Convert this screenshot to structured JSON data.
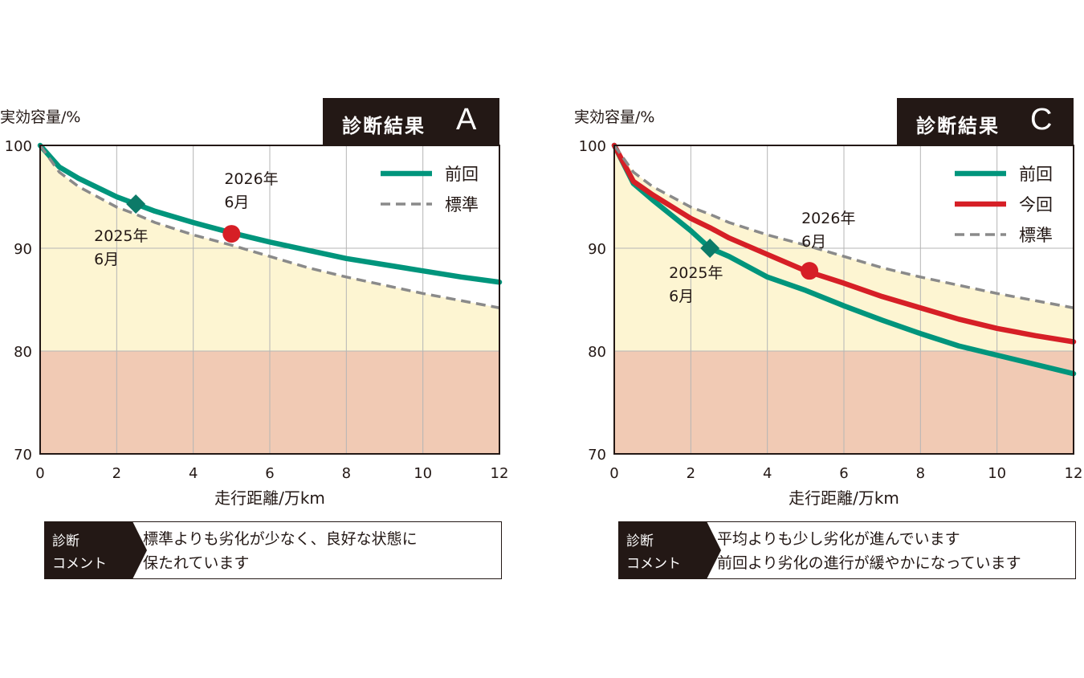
{
  "chart_data": [
    {
      "type": "line",
      "grade_label": "診断結果",
      "grade": "A",
      "ylabel": "実効容量/%",
      "xlabel": "走行距離/万km",
      "xlim": [
        0,
        12
      ],
      "ylim": [
        70,
        100
      ],
      "xticks": [
        "0",
        "2",
        "4",
        "6",
        "8",
        "10",
        "12"
      ],
      "yticks": [
        "70",
        "80",
        "90",
        "100"
      ],
      "grid": true,
      "legend_position": "top-right",
      "zones": [
        {
          "range": [
            80,
            100
          ],
          "color": "#fdf5d2"
        },
        {
          "range": [
            70,
            80
          ],
          "color": "#f1cab4"
        }
      ],
      "series": [
        {
          "name": "前回",
          "color": "#00957c",
          "style": "solid",
          "x": [
            0,
            0.5,
            1,
            2,
            2.5,
            3,
            4,
            5,
            6,
            7,
            8,
            9,
            10,
            11,
            12
          ],
          "y": [
            100,
            97.9,
            96.8,
            95.0,
            94.3,
            93.6,
            92.5,
            91.5,
            90.6,
            89.8,
            89.0,
            88.4,
            87.8,
            87.2,
            86.7
          ]
        },
        {
          "name": "標準",
          "color": "#8a8a8a",
          "style": "dashed",
          "x": [
            0,
            0.5,
            1,
            2,
            2.5,
            3,
            4,
            5,
            6,
            7,
            8,
            9,
            10,
            11,
            12
          ],
          "y": [
            100,
            97.4,
            96.0,
            94.0,
            93.3,
            92.5,
            91.3,
            90.3,
            89.2,
            88.1,
            87.2,
            86.4,
            85.6,
            84.9,
            84.2
          ]
        }
      ],
      "points": [
        {
          "x": 2.5,
          "y": 94.3,
          "marker": "diamond",
          "color": "#0c7a68",
          "label": [
            "2025年",
            "6月"
          ]
        },
        {
          "x": 5.0,
          "y": 91.4,
          "marker": "circle",
          "color": "#d61f26",
          "label": [
            "2026年",
            "6月"
          ]
        }
      ],
      "comment_head": [
        "診断",
        "コメント"
      ],
      "comment": [
        "標準よりも劣化が少なく、良好な状態に",
        "保たれています"
      ]
    },
    {
      "type": "line",
      "grade_label": "診断結果",
      "grade": "C",
      "ylabel": "実効容量/%",
      "xlabel": "走行距離/万km",
      "xlim": [
        0,
        12
      ],
      "ylim": [
        70,
        100
      ],
      "xticks": [
        "0",
        "2",
        "4",
        "6",
        "8",
        "10",
        "12"
      ],
      "yticks": [
        "70",
        "80",
        "90",
        "100"
      ],
      "grid": true,
      "legend_position": "top-right",
      "zones": [
        {
          "range": [
            80,
            100
          ],
          "color": "#fdf5d2"
        },
        {
          "range": [
            70,
            80
          ],
          "color": "#f1cab4"
        }
      ],
      "series": [
        {
          "name": "前回",
          "color": "#00957c",
          "style": "solid",
          "x": [
            0,
            0.5,
            1,
            2,
            2.5,
            3,
            4,
            5,
            6,
            7,
            8,
            9,
            10,
            11,
            12
          ],
          "y": [
            100,
            96.3,
            94.7,
            91.7,
            90.0,
            89.2,
            87.2,
            85.9,
            84.4,
            83.0,
            81.7,
            80.5,
            79.6,
            78.7,
            77.8
          ]
        },
        {
          "name": "今回",
          "color": "#d61f26",
          "style": "solid",
          "x": [
            0,
            0.5,
            1,
            2,
            2.5,
            3,
            4,
            5,
            6,
            7,
            8,
            9,
            10,
            11,
            12
          ],
          "y": [
            100,
            96.5,
            95.2,
            92.9,
            92.0,
            91.0,
            89.4,
            87.8,
            86.6,
            85.3,
            84.2,
            83.1,
            82.2,
            81.5,
            80.9
          ]
        },
        {
          "name": "標準",
          "color": "#8a8a8a",
          "style": "dashed",
          "x": [
            0,
            0.5,
            1,
            2,
            2.5,
            3,
            4,
            5,
            6,
            7,
            8,
            9,
            10,
            11,
            12
          ],
          "y": [
            100,
            97.4,
            96.0,
            94.0,
            93.3,
            92.5,
            91.3,
            90.3,
            89.2,
            88.1,
            87.2,
            86.4,
            85.6,
            84.9,
            84.2
          ]
        }
      ],
      "points": [
        {
          "x": 2.5,
          "y": 90.0,
          "marker": "diamond",
          "color": "#0c7a68",
          "label": [
            "2025年",
            "6月"
          ]
        },
        {
          "x": 5.1,
          "y": 87.8,
          "marker": "circle",
          "color": "#d61f26",
          "label": [
            "2026年",
            "6月"
          ]
        }
      ],
      "comment_head": [
        "診断",
        "コメント"
      ],
      "comment": [
        "平均よりも少し劣化が進んでいます",
        "前回より劣化の進行が緩やかになっています"
      ]
    }
  ]
}
